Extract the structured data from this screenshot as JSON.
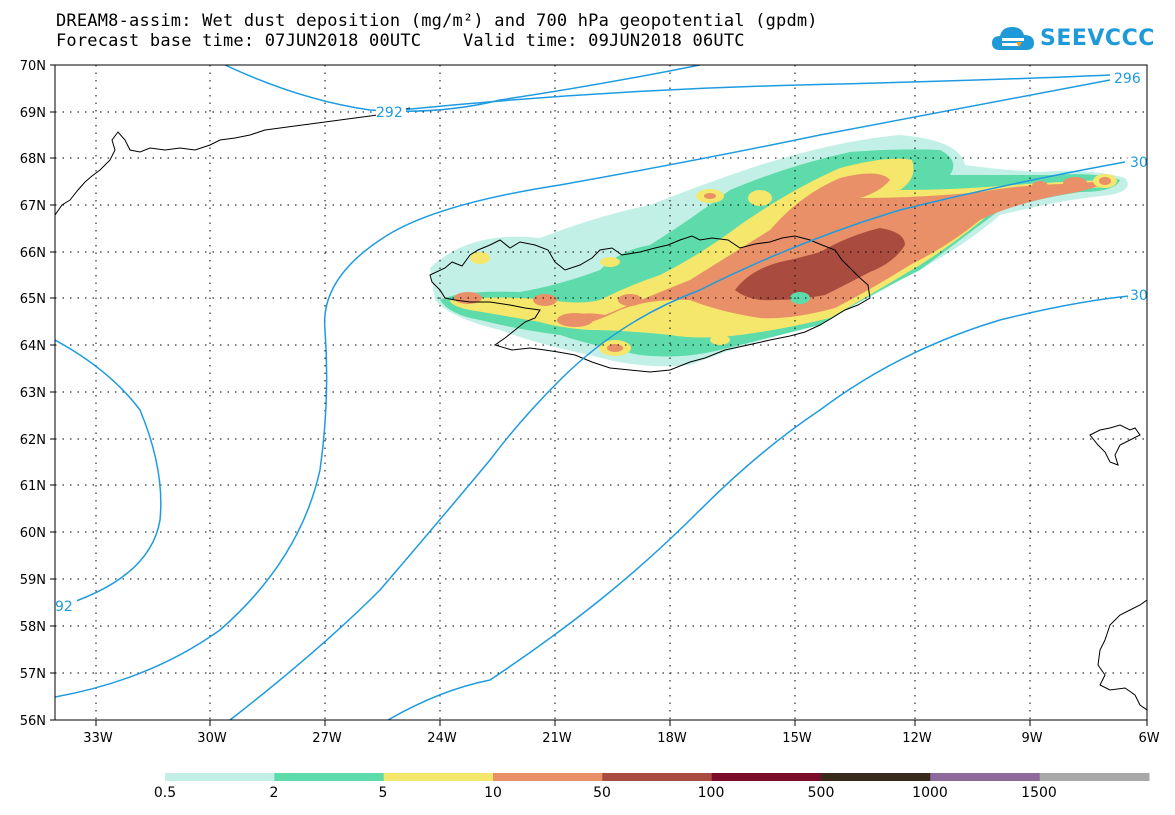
{
  "title_line1": "DREAM8-assim: Wet dust deposition (mg/m²) and 700 hPa geopotential (gpdm)",
  "title_line2": "Forecast base time: 07JUN2018 00UTC    Valid time: 09JUN2018 06UTC",
  "logo_text": "SEEVCCC",
  "lat_labels": [
    "70N",
    "69N",
    "68N",
    "67N",
    "66N",
    "65N",
    "64N",
    "63N",
    "62N",
    "61N",
    "60N",
    "59N",
    "58N",
    "57N",
    "56N"
  ],
  "lon_labels": [
    "33W",
    "30W",
    "27W",
    "24W",
    "21W",
    "18W",
    "15W",
    "12W",
    "9W",
    "6W"
  ],
  "contour_labels": [
    "292",
    "296",
    "30",
    "30",
    "92"
  ],
  "colorbar": {
    "labels": [
      "0.5",
      "2",
      "5",
      "10",
      "50",
      "100",
      "500",
      "1000",
      "1500"
    ],
    "colors": [
      "#c3f0e6",
      "#5ddbaa",
      "#f5e66c",
      "#ea9068",
      "#a94c3f",
      "#7b0d2a",
      "#3a2a1c",
      "#8e6a9c",
      "#a8a8a8"
    ]
  },
  "colors": {
    "contour": "#1e9be0",
    "coast": "#000000"
  }
}
